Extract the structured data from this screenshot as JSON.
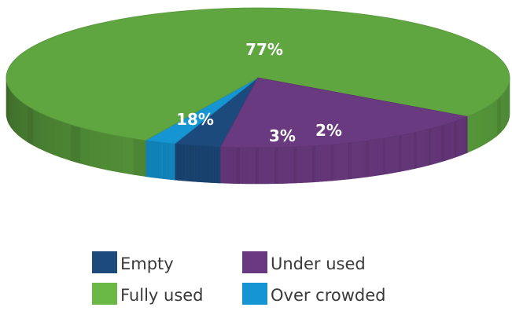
{
  "chart_data": {
    "type": "pie",
    "style": "3d",
    "slices": [
      {
        "label": "Empty",
        "value": 3,
        "color": "#1d4a7c",
        "text": "3%"
      },
      {
        "label": "Over crowded",
        "value": 2,
        "color": "#1596d3",
        "text": "2%"
      },
      {
        "label": "Fully used",
        "value": 77,
        "color": "#5fa640",
        "text": "77%"
      },
      {
        "label": "Under used",
        "value": 18,
        "color": "#6a3a80",
        "text": "18%"
      }
    ],
    "legend": {
      "placement": "bottom",
      "items": [
        {
          "label": "Empty",
          "color": "#1d4a7c"
        },
        {
          "label": "Under used",
          "color": "#6a3a80"
        },
        {
          "label": "Fully used",
          "color": "#6ab845"
        },
        {
          "label": "Over crowded",
          "color": "#1596d3"
        }
      ]
    }
  }
}
